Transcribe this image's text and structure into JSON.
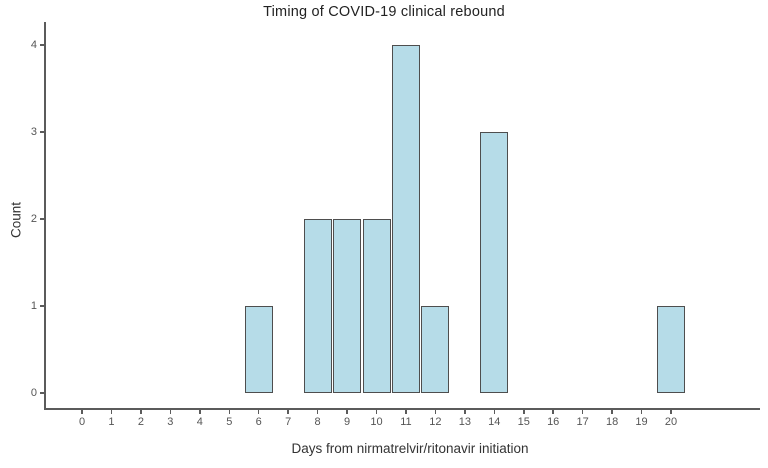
{
  "chart_data": {
    "type": "bar",
    "title": "Timing of COVID-19 clinical rebound",
    "xlabel": "Days from nirmatrelvir/ritonavir initiation",
    "ylabel": "Count",
    "x_ticks": [
      0,
      1,
      2,
      3,
      4,
      5,
      6,
      7,
      8,
      9,
      10,
      11,
      12,
      13,
      14,
      15,
      16,
      17,
      18,
      19,
      20
    ],
    "y_ticks": [
      0,
      1,
      2,
      3,
      4
    ],
    "xlim": [
      -1.3,
      23
    ],
    "ylim": [
      0,
      4.2
    ],
    "grid": false,
    "legend": "none",
    "bars": [
      {
        "day": 6,
        "count": 1
      },
      {
        "day": 8,
        "count": 2
      },
      {
        "day": 9,
        "count": 2
      },
      {
        "day": 10,
        "count": 2
      },
      {
        "day": 11,
        "count": 4
      },
      {
        "day": 12,
        "count": 1
      },
      {
        "day": 14,
        "count": 3
      },
      {
        "day": 20,
        "count": 1
      }
    ],
    "colors": {
      "bar_fill": "#b6dce8",
      "bar_border": "#4e4e4e",
      "axis_line": "#5b5b5b",
      "tick_label": "#555555",
      "title_text": "#222222",
      "axis_title": "#333333"
    }
  }
}
